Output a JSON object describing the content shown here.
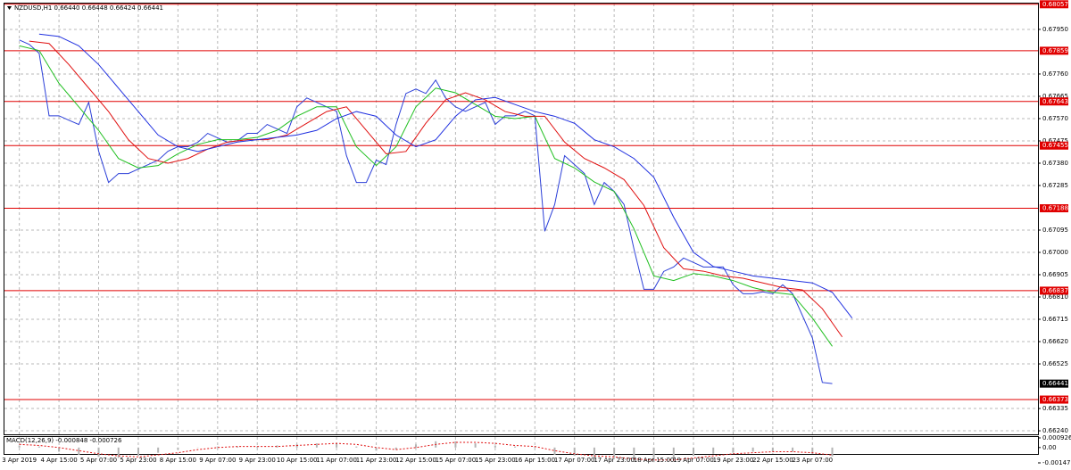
{
  "chart_data": [
    {
      "type": "line",
      "title": "NZDUSD,H1  0.66440 0.66448 0.66424 0.66441",
      "xlim": [
        -6,
        411
      ],
      "ylim": [
        0.66225,
        0.6806
      ],
      "grid": true,
      "xticks": [
        {
          "value": 0,
          "label": "3 Apr 2019"
        },
        {
          "value": 16,
          "label": "4 Apr 15:00"
        },
        {
          "value": 32,
          "label": "5 Apr 07:00"
        },
        {
          "value": 48,
          "label": "5 Apr 23:00"
        },
        {
          "value": 64,
          "label": "8 Apr 15:00"
        },
        {
          "value": 80,
          "label": "9 Apr 07:00"
        },
        {
          "value": 96,
          "label": "9 Apr 23:00"
        },
        {
          "value": 112,
          "label": "10 Apr 15:00"
        },
        {
          "value": 128,
          "label": "11 Apr 07:00"
        },
        {
          "value": 144,
          "label": "11 Apr 23:00"
        },
        {
          "value": 160,
          "label": "12 Apr 15:00"
        },
        {
          "value": 176,
          "label": "15 Apr 07:00"
        },
        {
          "value": 192,
          "label": "15 Apr 23:00"
        },
        {
          "value": 208,
          "label": "16 Apr 15:00"
        },
        {
          "value": 224,
          "label": "17 Apr 07:00"
        },
        {
          "value": 240,
          "label": "17 Apr 23:00"
        },
        {
          "value": 256,
          "label": "18 Apr 15:00"
        },
        {
          "value": 272,
          "label": "19 Apr 07:00"
        },
        {
          "value": 288,
          "label": "19 Apr 23:00"
        },
        {
          "value": 304,
          "label": "22 Apr 15:00"
        },
        {
          "value": 320,
          "label": "23 Apr 07:00"
        }
      ],
      "yticks": [
        {
          "value": 0.6795,
          "label": "0.67950"
        },
        {
          "value": 0.6776,
          "label": "0.67760"
        },
        {
          "value": 0.67665,
          "label": "0.67665"
        },
        {
          "value": 0.6757,
          "label": "0.67570"
        },
        {
          "value": 0.67475,
          "label": "0.67475"
        },
        {
          "value": 0.6738,
          "label": "0.67380"
        },
        {
          "value": 0.67285,
          "label": "0.67285"
        },
        {
          "value": 0.67095,
          "label": "0.67095"
        },
        {
          "value": 0.67,
          "label": "0.67000"
        },
        {
          "value": 0.66905,
          "label": "0.66905"
        },
        {
          "value": 0.6681,
          "label": "0.66810"
        },
        {
          "value": 0.66715,
          "label": "0.66715"
        },
        {
          "value": 0.6662,
          "label": "0.66620"
        },
        {
          "value": 0.66525,
          "label": "0.66525"
        },
        {
          "value": 0.66335,
          "label": "0.66335"
        },
        {
          "value": 0.6624,
          "label": "0.66240"
        }
      ],
      "levels_color": "#e00000",
      "levels": [
        {
          "value": 0.68057,
          "label": "0.68057"
        },
        {
          "value": 0.67859,
          "label": "0.67859"
        },
        {
          "value": 0.67643,
          "label": "0.67643"
        },
        {
          "value": 0.67455,
          "label": "0.67455"
        },
        {
          "value": 0.67188,
          "label": "0.67188"
        },
        {
          "value": 0.66837,
          "label": "0.66837"
        },
        {
          "value": 0.66373,
          "label": "0.66373"
        }
      ],
      "last": {
        "value": 0.66441,
        "label": "0.66441"
      },
      "series": [
        {
          "color": "#2b3fd8",
          "x": [
            0,
            4,
            8,
            12,
            16,
            20,
            24,
            28,
            32,
            36,
            40,
            44,
            48,
            52,
            56,
            60,
            64,
            68,
            72,
            76,
            80,
            84,
            88,
            92,
            96,
            100,
            104,
            108,
            112,
            116,
            120,
            124,
            128,
            132,
            136,
            140,
            144,
            148,
            152,
            156,
            160,
            164,
            168,
            172,
            176,
            180,
            184,
            188,
            192,
            196,
            200,
            204,
            208,
            212,
            216,
            220,
            224,
            228,
            232,
            236,
            240,
            244,
            248,
            252,
            256,
            260,
            264,
            268,
            272,
            276,
            280,
            284,
            288,
            292,
            296,
            300,
            304,
            308,
            312,
            316,
            320,
            324,
            328
          ],
          "values": [
            0.67905,
            0.67886,
            0.67848,
            0.67582,
            0.67582,
            0.67563,
            0.67545,
            0.67639,
            0.67431,
            0.67298,
            0.67336,
            0.67336,
            0.67355,
            0.67374,
            0.67393,
            0.67431,
            0.6745,
            0.6745,
            0.67469,
            0.67507,
            0.67488,
            0.67469,
            0.67476,
            0.67507,
            0.67507,
            0.67545,
            0.67526,
            0.67507,
            0.6762,
            0.67658,
            0.67639,
            0.6762,
            0.67601,
            0.67412,
            0.67298,
            0.67298,
            0.67393,
            0.67374,
            0.67545,
            0.67677,
            0.67696,
            0.67677,
            0.67734,
            0.67658,
            0.6762,
            0.67601,
            0.6762,
            0.67639,
            0.67545,
            0.67582,
            0.67582,
            0.67601,
            0.67582,
            0.6709,
            0.67204,
            0.67412,
            0.67374,
            0.67336,
            0.67204,
            0.67298,
            0.6726,
            0.67204,
            0.67014,
            0.66843,
            0.66843,
            0.66919,
            0.66938,
            0.66976,
            0.66957,
            0.66938,
            0.66938,
            0.66938,
            0.66862,
            0.66824,
            0.66824,
            0.66832,
            0.66824,
            0.66862,
            0.66824,
            0.6673,
            0.66635,
            0.66446,
            0.66441
          ]
        },
        {
          "color": "#1fbf1f",
          "x": [
            0,
            8,
            16,
            24,
            32,
            40,
            48,
            56,
            64,
            72,
            80,
            88,
            96,
            104,
            112,
            120,
            128,
            136,
            144,
            152,
            160,
            168,
            176,
            184,
            192,
            200,
            208,
            216,
            224,
            232,
            240,
            248,
            256,
            264,
            272,
            280,
            288,
            296,
            304,
            312,
            320,
            328
          ],
          "values": [
            0.6788,
            0.6786,
            0.6772,
            0.6762,
            0.6752,
            0.674,
            0.6736,
            0.6737,
            0.6742,
            0.6746,
            0.6748,
            0.6748,
            0.6749,
            0.6752,
            0.6758,
            0.6762,
            0.6762,
            0.6745,
            0.6737,
            0.6745,
            0.6762,
            0.677,
            0.6768,
            0.6763,
            0.6758,
            0.6757,
            0.6758,
            0.674,
            0.6736,
            0.673,
            0.6726,
            0.671,
            0.669,
            0.6688,
            0.6691,
            0.669,
            0.6688,
            0.6685,
            0.6683,
            0.6682,
            0.6672,
            0.666
          ]
        },
        {
          "color": "#e01010",
          "x": [
            4,
            12,
            20,
            28,
            36,
            44,
            52,
            60,
            68,
            76,
            84,
            92,
            100,
            108,
            116,
            124,
            132,
            140,
            148,
            156,
            164,
            172,
            180,
            188,
            196,
            204,
            212,
            220,
            228,
            236,
            244,
            252,
            260,
            268,
            276,
            284,
            292,
            300,
            308,
            316,
            324,
            332
          ],
          "values": [
            0.679,
            0.6789,
            0.678,
            0.677,
            0.676,
            0.6748,
            0.674,
            0.6738,
            0.674,
            0.6744,
            0.6747,
            0.6748,
            0.6748,
            0.675,
            0.6755,
            0.676,
            0.6762,
            0.6752,
            0.6742,
            0.6743,
            0.6755,
            0.6765,
            0.6768,
            0.6765,
            0.676,
            0.6758,
            0.6758,
            0.6747,
            0.674,
            0.6736,
            0.6731,
            0.672,
            0.6702,
            0.6693,
            0.6692,
            0.669,
            0.6689,
            0.6687,
            0.6685,
            0.6684,
            0.6676,
            0.6664
          ]
        },
        {
          "color": "#2030e0",
          "x": [
            8,
            16,
            24,
            32,
            40,
            48,
            56,
            64,
            72,
            80,
            88,
            96,
            104,
            112,
            120,
            128,
            136,
            144,
            152,
            160,
            168,
            176,
            184,
            192,
            200,
            208,
            216,
            224,
            232,
            240,
            248,
            256,
            264,
            272,
            280,
            288,
            296,
            304,
            312,
            320,
            328,
            336
          ],
          "values": [
            0.6793,
            0.6792,
            0.6788,
            0.678,
            0.677,
            0.676,
            0.675,
            0.6745,
            0.6743,
            0.6745,
            0.6747,
            0.6748,
            0.6749,
            0.675,
            0.6752,
            0.6757,
            0.676,
            0.6758,
            0.675,
            0.6745,
            0.6748,
            0.6758,
            0.6765,
            0.6766,
            0.6763,
            0.676,
            0.6758,
            0.6755,
            0.6748,
            0.6745,
            0.674,
            0.6732,
            0.6715,
            0.67,
            0.6694,
            0.6692,
            0.669,
            0.6689,
            0.6688,
            0.6687,
            0.6683,
            0.6672
          ]
        }
      ]
    },
    {
      "type": "macd",
      "title": "MACD(12,26,9) -0.000848 -0.000726",
      "xlim": [
        -6,
        411
      ],
      "ylim": [
        -0.001473,
        0.000926
      ],
      "yticks": [
        {
          "value": 0.000926,
          "label": "0.000926"
        },
        {
          "value": 0,
          "label": "0.00"
        },
        {
          "value": -0.001473,
          "label": "-0.001473"
        }
      ],
      "series": [
        {
          "style": "histogram",
          "color": "#b4b4b4",
          "x": [
            0,
            8,
            16,
            24,
            32,
            40,
            48,
            56,
            64,
            72,
            80,
            88,
            96,
            104,
            112,
            120,
            128,
            136,
            144,
            152,
            160,
            168,
            176,
            184,
            192,
            200,
            208,
            216,
            224,
            232,
            240,
            248,
            256,
            264,
            272,
            280,
            288,
            296,
            304,
            312,
            320,
            328
          ],
          "values": [
            0.0002,
            0.0001,
            -0.0004,
            -0.0007,
            -0.0009,
            -0.001,
            -0.0008,
            -0.0005,
            -0.0002,
            0,
            0.0001,
            0.0001,
            0.0001,
            0.0002,
            0.0003,
            0.0004,
            0.0004,
            0.0001,
            -0.0003,
            -0.0002,
            0.0003,
            0.0006,
            0.0006,
            0.0004,
            0.0002,
            0.0001,
            0.0001,
            -0.0007,
            -0.0008,
            -0.001,
            -0.001,
            -0.0012,
            -0.0014,
            -0.0011,
            -0.0008,
            -0.0006,
            -0.0005,
            -0.0004,
            -0.0004,
            -0.0004,
            -0.0006,
            -0.000848
          ]
        },
        {
          "style": "dashed",
          "color": "#e01010",
          "x": [
            0,
            8,
            16,
            24,
            32,
            40,
            48,
            56,
            64,
            72,
            80,
            88,
            96,
            104,
            112,
            120,
            128,
            136,
            144,
            152,
            160,
            168,
            176,
            184,
            192,
            200,
            208,
            216,
            224,
            232,
            240,
            248,
            256,
            264,
            272,
            280,
            288,
            296,
            304,
            312,
            320,
            328
          ],
          "values": [
            0.0003,
            0.0002,
            0,
            -0.0003,
            -0.0006,
            -0.0008,
            -0.0009,
            -0.0007,
            -0.0005,
            -0.0002,
            0,
            0.0001,
            0.0001,
            0.0001,
            0.0002,
            0.0003,
            0.0004,
            0.0003,
            0,
            -0.0002,
            0,
            0.0003,
            0.0005,
            0.0005,
            0.0004,
            0.0002,
            0.0001,
            -0.0003,
            -0.0006,
            -0.0008,
            -0.0009,
            -0.0011,
            -0.0012,
            -0.0012,
            -0.001,
            -0.0008,
            -0.0006,
            -0.0005,
            -0.0004,
            -0.0004,
            -0.0005,
            -0.000726
          ]
        }
      ]
    }
  ]
}
